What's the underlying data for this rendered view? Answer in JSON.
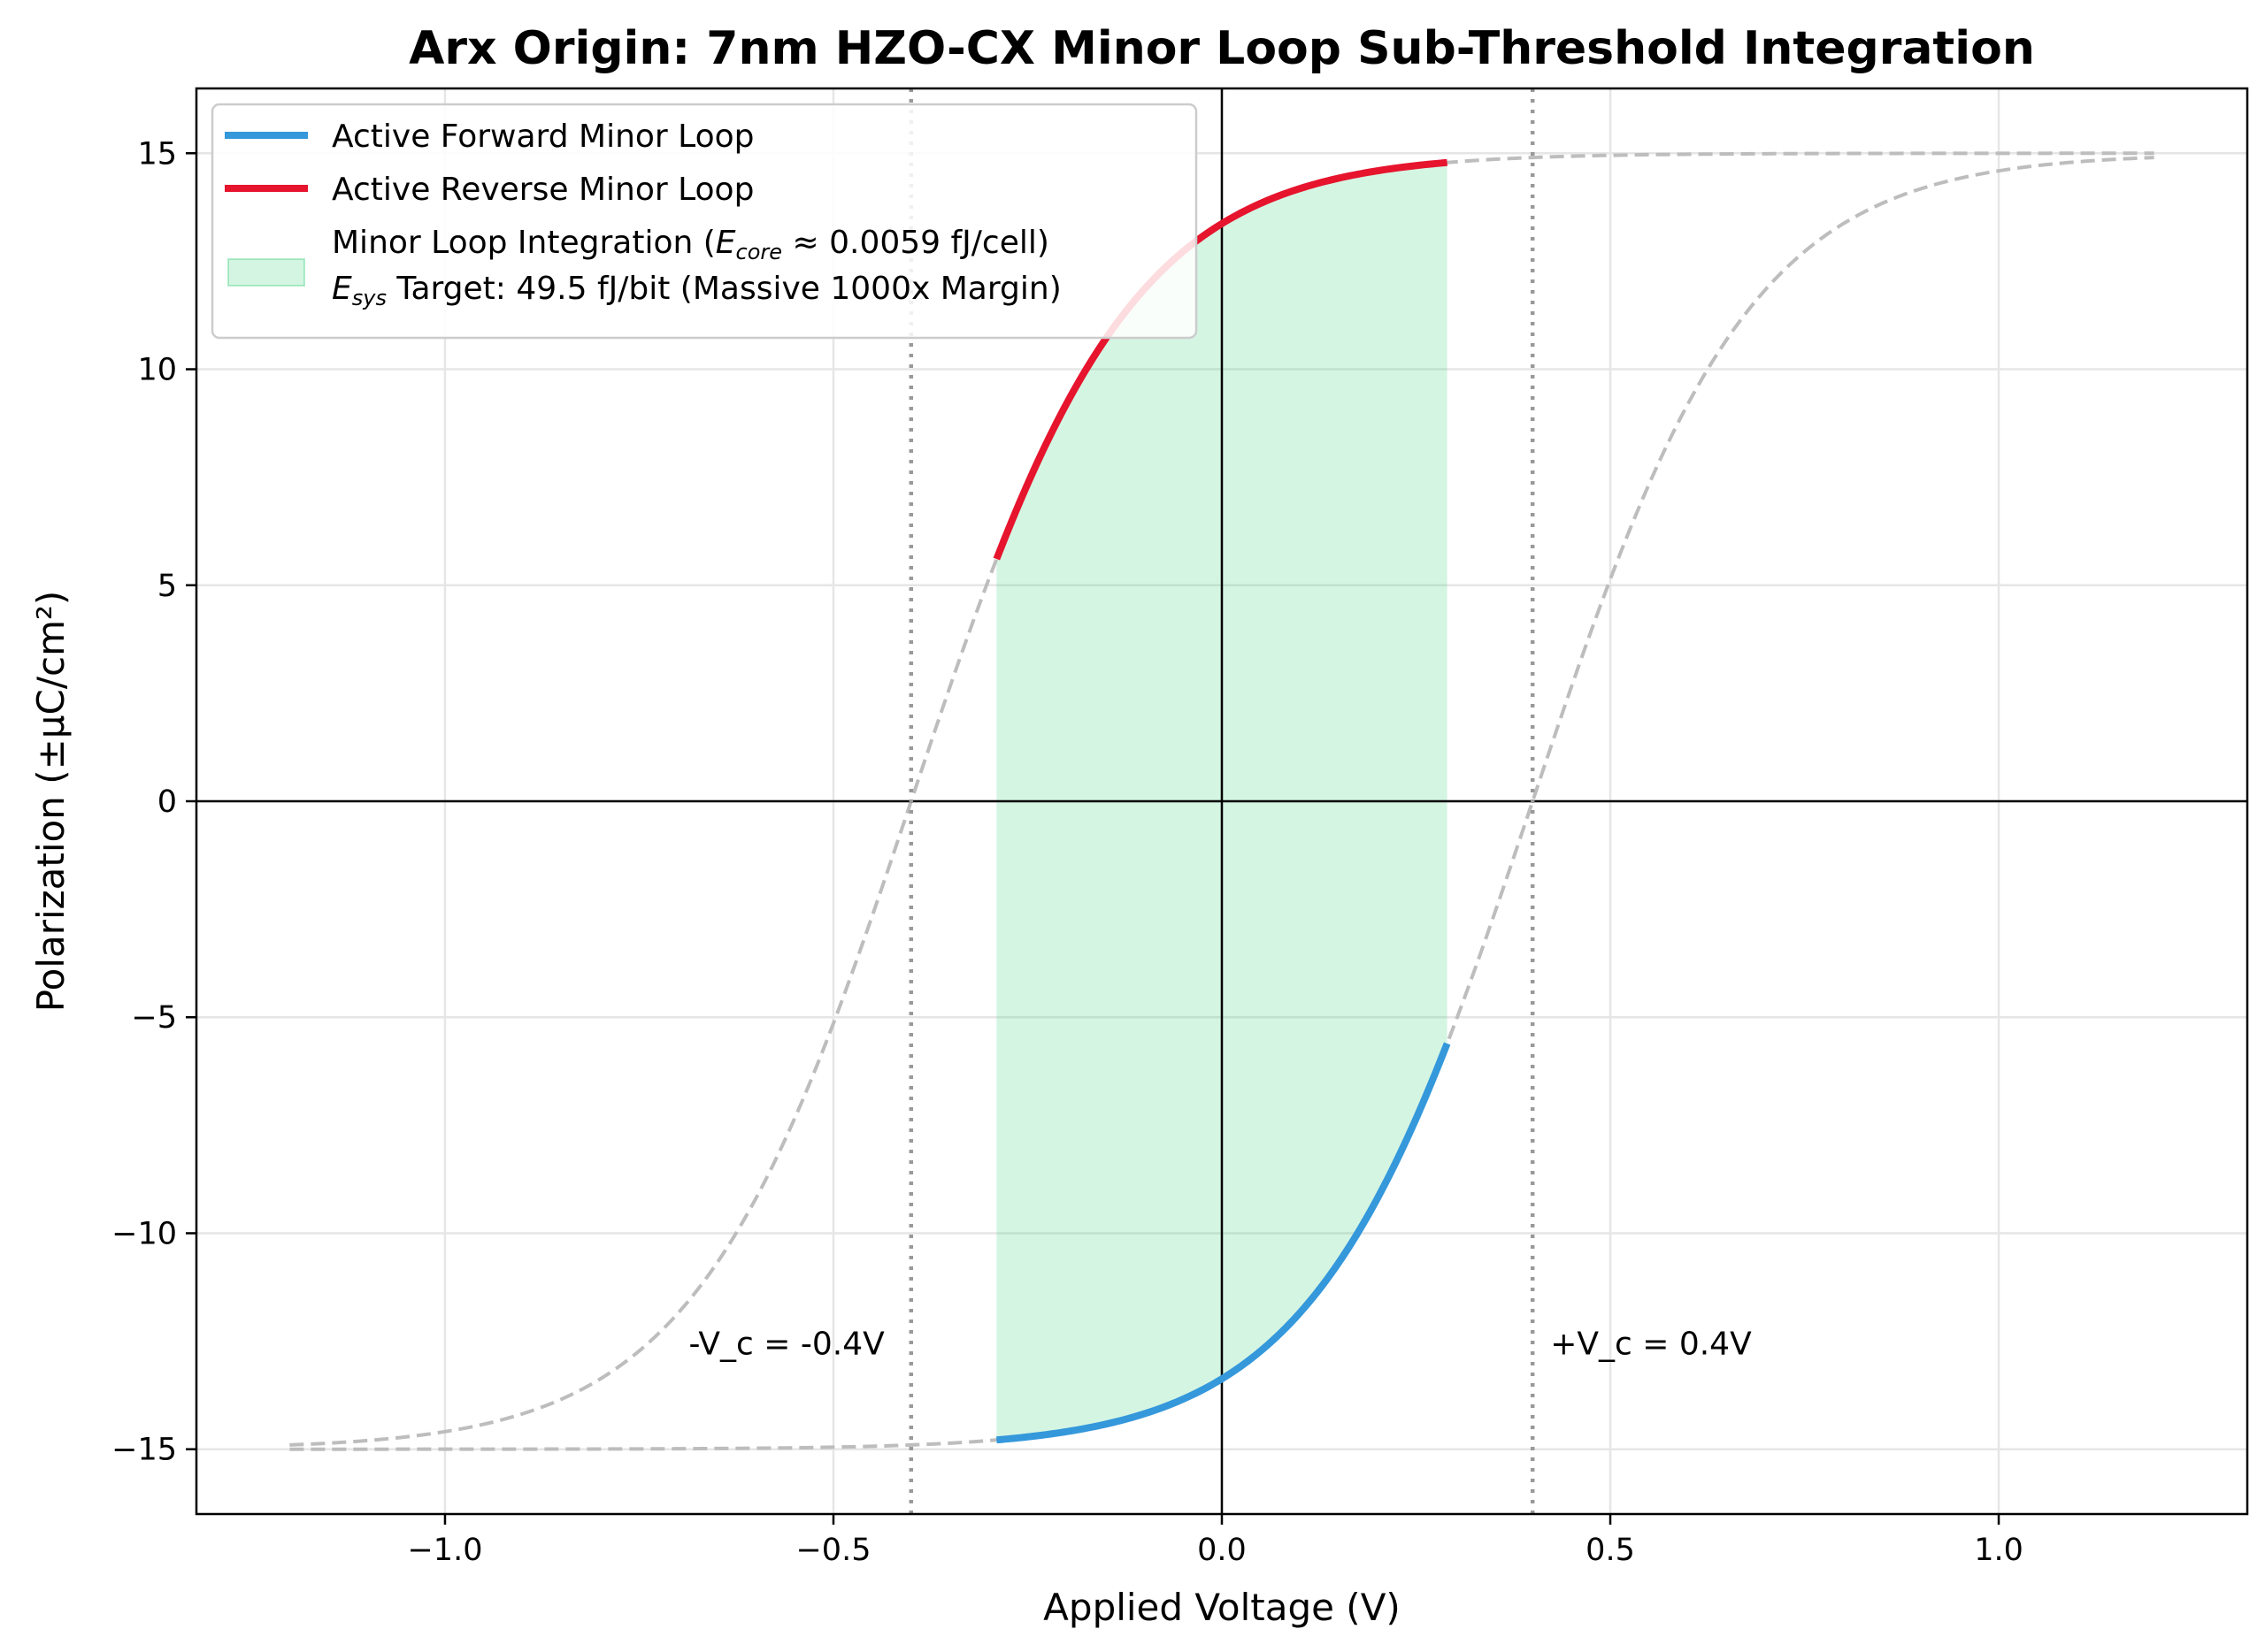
{
  "chart_data": {
    "type": "line",
    "title": "Arx Origin: 7nm HZO-CX Minor Loop Sub-Threshold Integration",
    "xlabel": "Applied Voltage (V)",
    "ylabel": "Polarization (±μC/cm²)",
    "xlim": [
      -1.32,
      1.32
    ],
    "ylim": [
      -16.5,
      16.5
    ],
    "xticks": [
      -1.0,
      -0.5,
      0.0,
      0.5,
      1.0
    ],
    "xtick_labels": [
      "−1.0",
      "−0.5",
      "0.0",
      "0.5",
      "1.0"
    ],
    "yticks": [
      -15,
      -10,
      -5,
      0,
      5,
      10,
      15
    ],
    "ytick_labels": [
      "−15",
      "−10",
      "−5",
      "0",
      "5",
      "10",
      "15"
    ],
    "grid": true,
    "legend_position": "top-left",
    "model": {
      "Ps": 15,
      "Vc": 0.4,
      "slope": 0.28,
      "Vmin": -1.2,
      "Vmax": 1.2,
      "minor_Vmin": -0.29,
      "minor_Vmax": 0.29
    },
    "series": [
      {
        "name": "Active Forward Minor Loop",
        "color": "#3498db",
        "x_range": [
          -0.29,
          0.29
        ]
      },
      {
        "name": "Active Reverse Minor Loop",
        "color": "#e6142d",
        "x_range": [
          -0.29,
          0.29
        ]
      },
      {
        "name": "",
        "color": "#bdbdbd",
        "style": "dashed",
        "x_range": [
          -1.2,
          1.2
        ]
      }
    ],
    "fill": {
      "legend_line1_prefix": "Minor Loop Integration (",
      "legend_line1_sym": "E",
      "legend_line1_sub": "core",
      "legend_line1_suffix": " ≈  0.0059 fJ/cell)",
      "legend_line2_sym": "E",
      "legend_line2_sub": "sys",
      "legend_line2_suffix": " Target: 49.5 fJ/bit (Massive 1000x Margin)",
      "color": "#2ecc71",
      "x_range": [
        -0.29,
        0.29
      ]
    },
    "vlines": [
      {
        "x": -0.4,
        "label": "-V_c = -0.4V"
      },
      {
        "x": 0.4,
        "label": "+V_c = 0.4V"
      }
    ],
    "annotation_y": -12.8
  }
}
